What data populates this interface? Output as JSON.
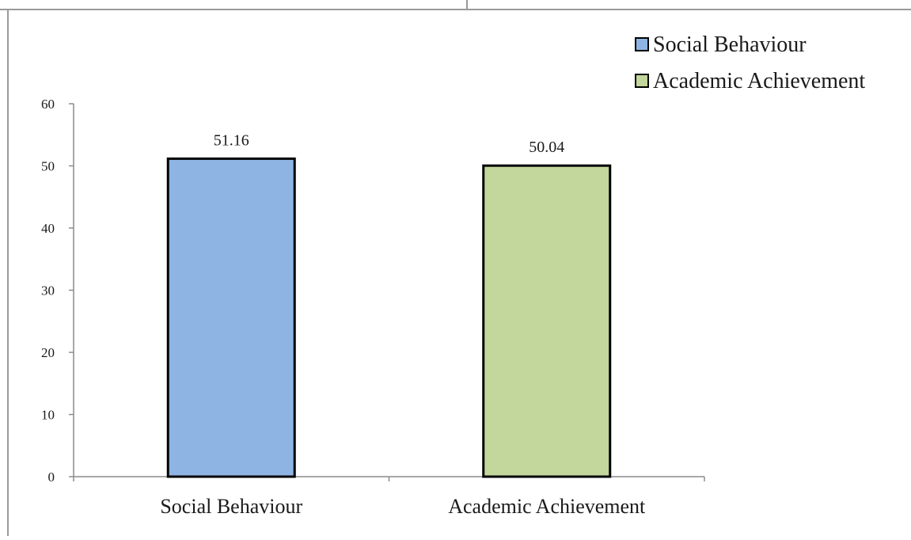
{
  "chart_data": {
    "type": "bar",
    "title": "",
    "xlabel": "",
    "ylabel": "",
    "categories": [
      "Social Behaviour",
      "Academic Achievement"
    ],
    "values": [
      51.16,
      50.04
    ],
    "data_labels": [
      "51.16",
      "50.04"
    ],
    "colors": [
      "#8eb4e3",
      "#c3d69b"
    ],
    "ylim": [
      0,
      60
    ],
    "yticks": [
      0,
      10,
      20,
      30,
      40,
      50,
      60
    ],
    "grid": false,
    "legend": {
      "position": "top-right",
      "entries": [
        {
          "name": "Social Behaviour",
          "color": "#8eb4e3"
        },
        {
          "name": "Academic Achievement",
          "color": "#c3d69b"
        }
      ]
    }
  }
}
